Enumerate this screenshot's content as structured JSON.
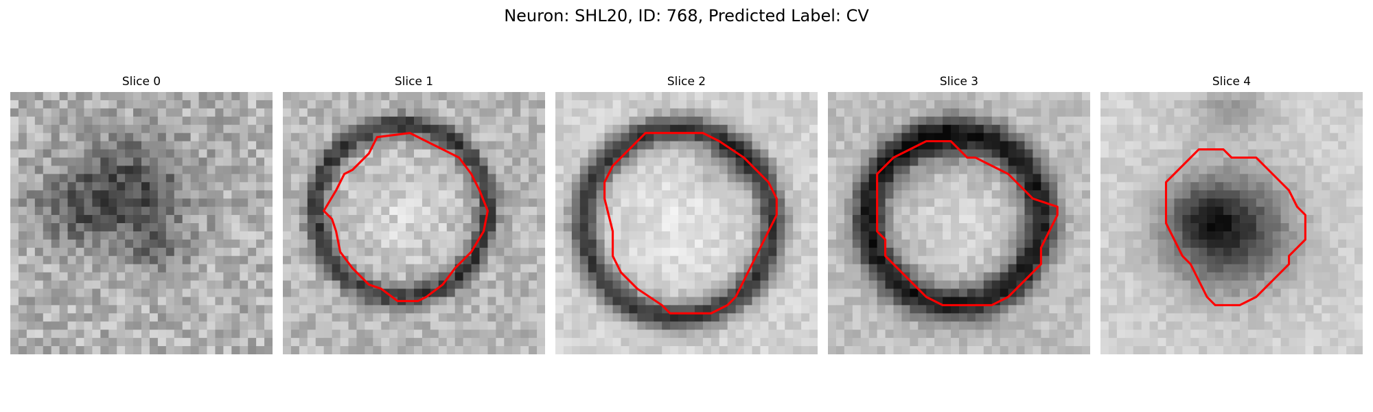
{
  "figure": {
    "title": "Neuron: SHL20, ID: 768, Predicted Label: CV",
    "contour_color": "#ff0000",
    "colormap": "grayscale"
  },
  "slices": [
    {
      "title": "Slice 0",
      "has_contour": false
    },
    {
      "title": "Slice 1",
      "has_contour": true
    },
    {
      "title": "Slice 2",
      "has_contour": true
    },
    {
      "title": "Slice 3",
      "has_contour": true
    },
    {
      "title": "Slice 4",
      "has_contour": true
    }
  ]
}
